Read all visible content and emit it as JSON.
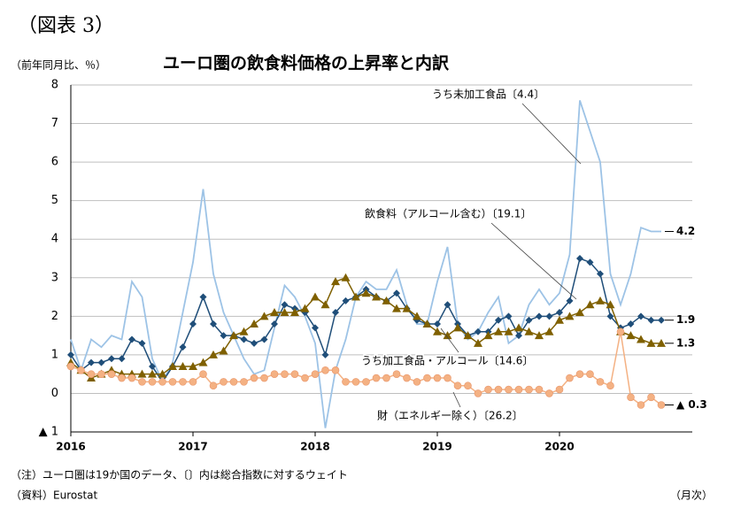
{
  "chart_data": {
    "type": "line",
    "header": "（図表 3）",
    "title": "ユーロ圏の飲食料価格の上昇率と内訳",
    "ylabel": "（前年同月比、％）",
    "note": "（注）ユーロ圏は19か国のデータ、〔〕内は総合指数に対するウェイト",
    "source": "（資料）Eurostat",
    "xlabel": "（月次）",
    "categories": [
      "2016",
      null,
      null,
      null,
      null,
      null,
      null,
      null,
      null,
      null,
      null,
      null,
      "2017",
      null,
      null,
      null,
      null,
      null,
      null,
      null,
      null,
      null,
      null,
      null,
      "2018",
      null,
      null,
      null,
      null,
      null,
      null,
      null,
      null,
      null,
      null,
      null,
      "2019",
      null,
      null,
      null,
      null,
      null,
      null,
      null,
      null,
      null,
      null,
      null,
      "2020",
      null,
      null,
      null,
      null,
      null,
      null,
      null,
      null,
      null,
      null
    ],
    "ylim": [
      -1,
      8
    ],
    "yticks": [
      {
        "value": -1,
        "label": "▲ 1"
      },
      0,
      1,
      2,
      3,
      4,
      5,
      6,
      7,
      8
    ],
    "grid": true,
    "series": [
      {
        "name": "うち未加工食品〔4.4〕",
        "color": "#9dc3e6",
        "marker": "none",
        "end_label": "4.2",
        "values": [
          1.4,
          0.6,
          1.4,
          1.2,
          1.5,
          1.4,
          2.9,
          2.5,
          0.9,
          0.3,
          0.8,
          2.1,
          3.4,
          5.3,
          3.1,
          2.1,
          1.5,
          0.9,
          0.5,
          0.6,
          1.7,
          2.8,
          2.5,
          2.0,
          1.3,
          -0.9,
          0.6,
          1.4,
          2.5,
          2.9,
          2.7,
          2.7,
          3.2,
          2.3,
          1.8,
          1.8,
          2.9,
          3.8,
          1.8,
          1.4,
          1.6,
          2.1,
          2.5,
          1.3,
          1.5,
          2.3,
          2.7,
          2.3,
          2.6,
          3.6,
          7.6,
          6.8,
          6.0,
          3.1,
          2.3,
          3.1,
          4.3,
          4.2,
          4.2
        ]
      },
      {
        "name": "飲食料（アルコール含む）〔19.1〕",
        "color": "#1f4e79",
        "marker": "diamond",
        "end_label": "1.9",
        "values": [
          1.0,
          0.6,
          0.8,
          0.8,
          0.9,
          0.9,
          1.4,
          1.3,
          0.7,
          0.3,
          0.7,
          1.2,
          1.8,
          2.5,
          1.8,
          1.5,
          1.5,
          1.4,
          1.3,
          1.4,
          1.8,
          2.3,
          2.2,
          2.1,
          1.7,
          1.0,
          2.1,
          2.4,
          2.5,
          2.7,
          2.5,
          2.4,
          2.6,
          2.2,
          1.9,
          1.8,
          1.8,
          2.3,
          1.8,
          1.5,
          1.6,
          1.6,
          1.9,
          2.0,
          1.5,
          1.9,
          2.0,
          2.0,
          2.1,
          2.4,
          3.5,
          3.4,
          3.1,
          2.0,
          1.7,
          1.8,
          2.0,
          1.9,
          1.9
        ]
      },
      {
        "name": "うち加工食品・アルコール〔14.6〕",
        "color": "#7f6000",
        "marker": "triangle",
        "end_label": "1.3",
        "values": [
          0.8,
          0.6,
          0.4,
          0.5,
          0.6,
          0.5,
          0.5,
          0.5,
          0.5,
          0.5,
          0.7,
          0.7,
          0.7,
          0.8,
          1.0,
          1.1,
          1.5,
          1.6,
          1.8,
          2.0,
          2.1,
          2.1,
          2.1,
          2.2,
          2.5,
          2.3,
          2.9,
          3.0,
          2.5,
          2.6,
          2.5,
          2.4,
          2.2,
          2.2,
          2.0,
          1.8,
          1.6,
          1.5,
          1.7,
          1.5,
          1.3,
          1.5,
          1.6,
          1.6,
          1.7,
          1.6,
          1.5,
          1.6,
          1.9,
          2.0,
          2.1,
          2.3,
          2.4,
          2.3,
          1.6,
          1.5,
          1.4,
          1.3,
          1.3
        ]
      },
      {
        "name": "財（エネルギー除く）〔26.2〕",
        "color": "#f4b183",
        "marker": "circle",
        "end_label": "▲ 0.3",
        "values": [
          0.7,
          0.6,
          0.5,
          0.5,
          0.5,
          0.4,
          0.4,
          0.3,
          0.3,
          0.3,
          0.3,
          0.3,
          0.3,
          0.5,
          0.2,
          0.3,
          0.3,
          0.3,
          0.4,
          0.4,
          0.5,
          0.5,
          0.5,
          0.4,
          0.5,
          0.6,
          0.6,
          0.3,
          0.3,
          0.3,
          0.4,
          0.4,
          0.5,
          0.4,
          0.3,
          0.4,
          0.4,
          0.4,
          0.2,
          0.2,
          0.0,
          0.1,
          0.1,
          0.1,
          0.1,
          0.1,
          0.1,
          0.0,
          0.1,
          0.4,
          0.5,
          0.5,
          0.3,
          0.2,
          1.6,
          -0.1,
          -0.3,
          -0.1,
          -0.3
        ]
      }
    ]
  }
}
